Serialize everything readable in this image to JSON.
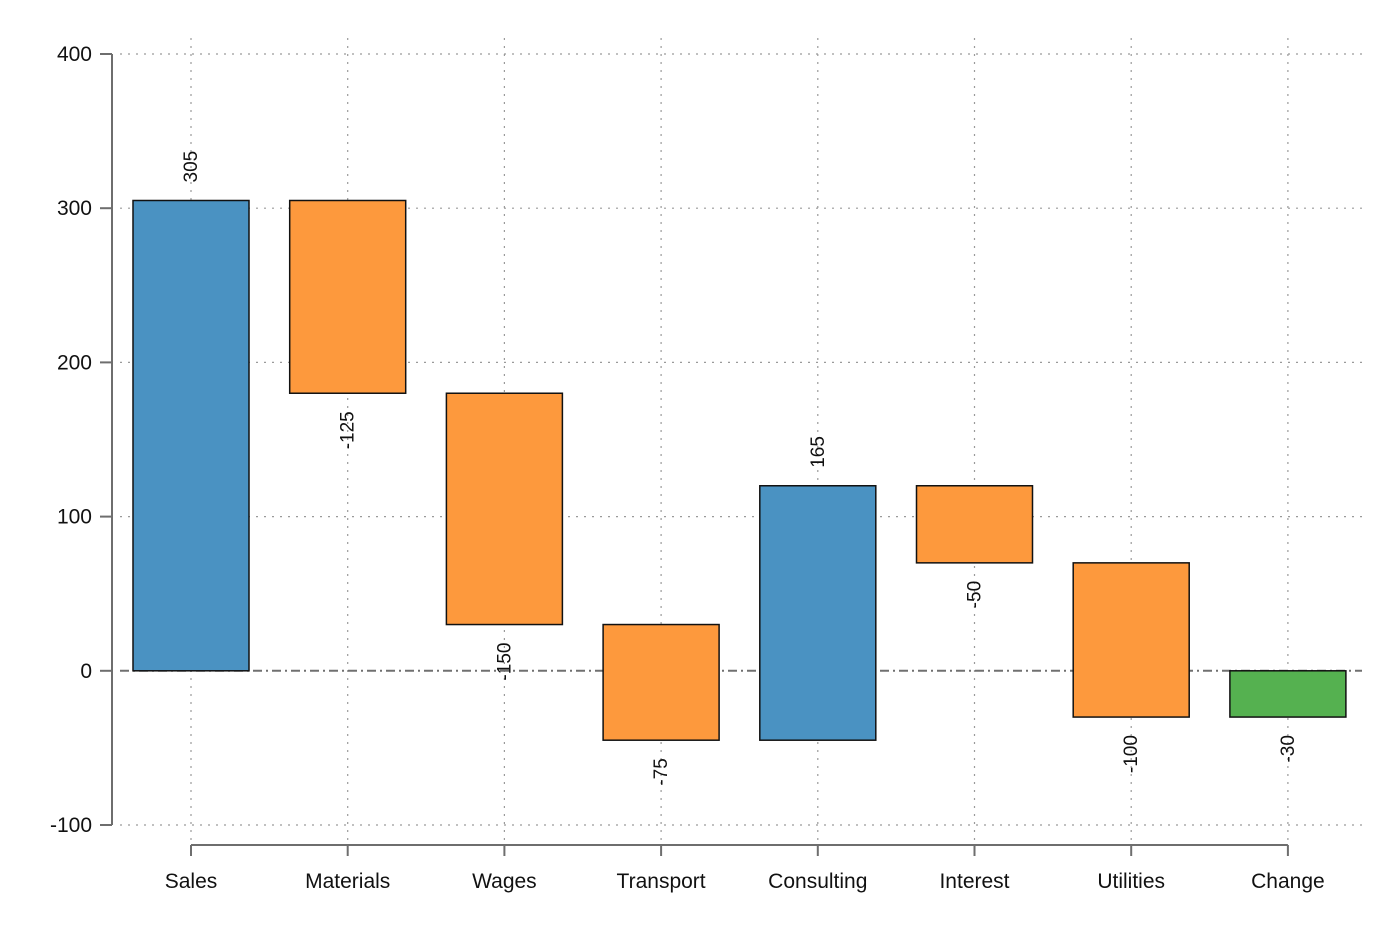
{
  "chart_data": {
    "type": "bar",
    "subtype": "waterfall",
    "categories": [
      "Sales",
      "Materials",
      "Wages",
      "Transport",
      "Consulting",
      "Interest",
      "Utilities",
      "Change"
    ],
    "values": [
      305,
      -125,
      -150,
      -75,
      165,
      -50,
      -100,
      -30
    ],
    "bar_kind": [
      "income",
      "expense",
      "expense",
      "expense",
      "income",
      "expense",
      "expense",
      "total"
    ],
    "data_labels": [
      "305",
      "-125",
      "-150",
      "-75",
      "165",
      "-50",
      "-100",
      "-30"
    ],
    "ylim": [
      -100,
      400
    ],
    "yticks": [
      -100,
      0,
      100,
      200,
      300,
      400
    ],
    "ytick_labels": [
      "-100",
      "0",
      "100",
      "200",
      "300",
      "400"
    ],
    "grid": true,
    "zero_line": "dash-dot",
    "title": "",
    "xlabel": "",
    "ylabel": "",
    "colors": {
      "income": "#4a92c2",
      "expense": "#fd993d",
      "total": "#55b150",
      "bar_stroke": "#111111",
      "axis": "#6e6e6e",
      "grid": "#9a9a9a",
      "zero_line": "#707070"
    }
  }
}
